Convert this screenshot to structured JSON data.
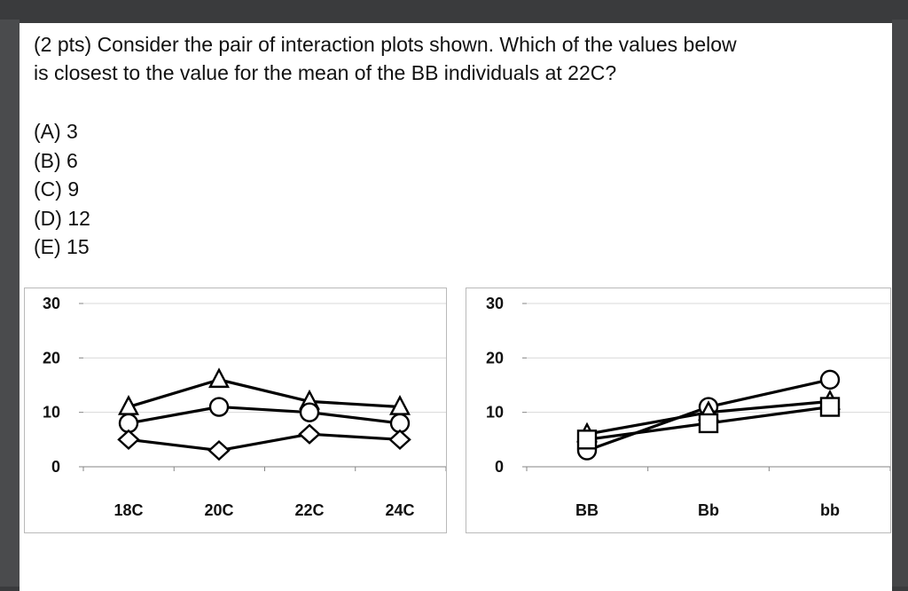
{
  "question": {
    "line1": "(2 pts) Consider the pair of interaction plots shown. Which of the values below",
    "line2": "is closest to the value for the mean of the BB individuals at 22C?"
  },
  "options": [
    "(A) 3",
    "(B) 6",
    "(C) 9",
    "(D) 12",
    "(E) 15"
  ],
  "chart_data": [
    {
      "type": "line",
      "categories": [
        "18C",
        "20C",
        "22C",
        "24C"
      ],
      "ylim": [
        0,
        30
      ],
      "yticks": [
        "30",
        "20",
        "10",
        "0"
      ],
      "grid": true,
      "series": [
        {
          "marker": "triangle",
          "values": [
            11,
            16,
            12,
            11
          ]
        },
        {
          "marker": "circle",
          "values": [
            8,
            11,
            10,
            8
          ]
        },
        {
          "marker": "diamond",
          "values": [
            5,
            3,
            6,
            5
          ]
        }
      ]
    },
    {
      "type": "line",
      "categories": [
        "BB",
        "Bb",
        "bb"
      ],
      "ylim": [
        0,
        30
      ],
      "yticks": [
        "30",
        "20",
        "10",
        "0"
      ],
      "grid": true,
      "series": [
        {
          "marker": "circle",
          "values": [
            3,
            11,
            16
          ]
        },
        {
          "marker": "triangle",
          "values": [
            6,
            10,
            12
          ]
        },
        {
          "marker": "square",
          "values": [
            5,
            8,
            11
          ]
        }
      ]
    }
  ]
}
